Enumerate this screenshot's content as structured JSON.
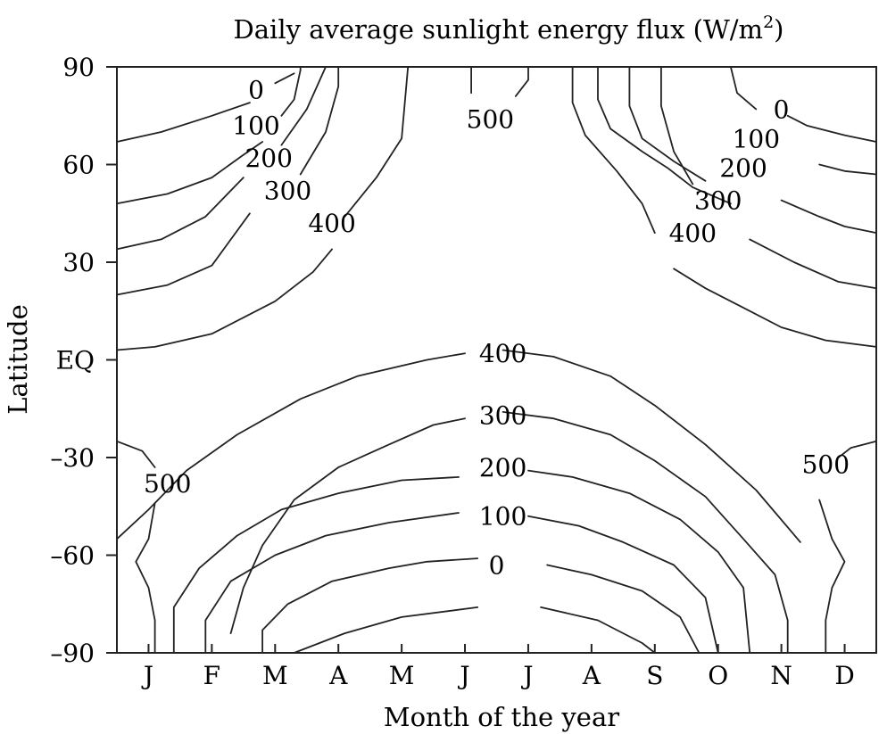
{
  "chart_data": {
    "type": "contour",
    "title": "Daily average sunlight energy flux (W/m",
    "title_superscript": "2",
    "title_suffix": ")",
    "xlabel": "Month of the year",
    "ylabel": "Latitude",
    "x_ticks": [
      "J",
      "F",
      "M",
      "A",
      "M",
      "J",
      "J",
      "A",
      "S",
      "O",
      "N",
      "D"
    ],
    "xlim": [
      0.5,
      12.5
    ],
    "y_ticks": [
      {
        "value": 90,
        "label": "90"
      },
      {
        "value": 60,
        "label": "60"
      },
      {
        "value": 30,
        "label": "30"
      },
      {
        "value": 0,
        "label": "EQ"
      },
      {
        "value": -30,
        "label": "–30"
      },
      {
        "value": -60,
        "label": "–60"
      },
      {
        "value": -90,
        "label": "–90"
      }
    ],
    "ylim": [
      -90,
      90
    ],
    "contours": [
      {
        "level": 0,
        "label": "0",
        "label_pos": [
          2.6,
          83
        ],
        "points": [
          [
            0.5,
            67
          ],
          [
            1.2,
            70
          ],
          [
            2.0,
            75
          ],
          [
            2.6,
            79
          ]
        ]
      },
      {
        "level": 0,
        "label": "0",
        "label_pos": [
          2.6,
          83
        ],
        "points": [
          [
            3.0,
            85
          ],
          [
            3.3,
            88
          ]
        ]
      },
      {
        "level": 100,
        "label": "100",
        "label_pos": [
          2.7,
          72
        ],
        "points": [
          [
            0.5,
            48
          ],
          [
            1.3,
            51
          ],
          [
            2.0,
            56
          ],
          [
            2.5,
            63
          ],
          [
            2.8,
            67
          ]
        ]
      },
      {
        "level": 100,
        "label": "100",
        "label_pos": [
          2.7,
          72
        ],
        "points": [
          [
            3.1,
            75
          ],
          [
            3.3,
            80
          ],
          [
            3.4,
            89
          ],
          [
            3.4,
            90
          ]
        ]
      },
      {
        "level": 200,
        "label": "200",
        "label_pos": [
          2.8,
          62
        ],
        "points": [
          [
            0.5,
            34
          ],
          [
            1.2,
            37
          ],
          [
            1.9,
            44
          ],
          [
            2.5,
            56
          ]
        ]
      },
      {
        "level": 200,
        "label": "200",
        "label_pos": [
          2.8,
          62
        ],
        "points": [
          [
            3.1,
            66
          ],
          [
            3.5,
            77
          ],
          [
            3.8,
            90
          ]
        ]
      },
      {
        "level": 300,
        "label": "300",
        "label_pos": [
          3.0,
          52
        ],
        "points": [
          [
            0.5,
            20
          ],
          [
            1.3,
            23
          ],
          [
            2.0,
            29
          ],
          [
            2.6,
            45
          ]
        ]
      },
      {
        "level": 300,
        "label": "300",
        "label_pos": [
          3.0,
          52
        ],
        "points": [
          [
            3.4,
            57
          ],
          [
            3.8,
            70
          ],
          [
            4.0,
            84
          ],
          [
            4.0,
            90
          ]
        ]
      },
      {
        "level": 400,
        "label": "400",
        "label_pos": [
          3.3,
          42
        ],
        "points": [
          [
            0.5,
            3
          ],
          [
            1.1,
            4
          ],
          [
            2.0,
            8
          ],
          [
            3.0,
            18
          ],
          [
            3.6,
            27
          ],
          [
            3.9,
            34
          ]
        ]
      },
      {
        "level": 400,
        "label": "400",
        "label_pos": [
          3.3,
          42
        ],
        "points": [
          [
            4.1,
            44
          ],
          [
            4.6,
            56
          ],
          [
            5.0,
            68
          ],
          [
            5.1,
            90
          ]
        ]
      },
      {
        "level": 500,
        "label": "500",
        "label_pos": [
          6.3,
          74
        ],
        "points": [
          [
            6.1,
            82
          ],
          [
            6.1,
            90
          ]
        ]
      },
      {
        "level": 500,
        "label": "500",
        "label_pos": [
          6.3,
          74
        ],
        "points": [
          [
            6.8,
            81
          ],
          [
            7.0,
            86
          ],
          [
            7.0,
            90
          ]
        ]
      },
      {
        "level": 500,
        "label": "500",
        "label_pos": [
          10.8,
          73
        ],
        "points": [
          [
            10.6,
            77
          ],
          [
            10.3,
            82
          ],
          [
            10.2,
            90
          ]
        ]
      },
      {
        "level": 500,
        "label": "500",
        "label_pos": [
          10.8,
          73
        ],
        "points": [
          [
            11.1,
            75
          ],
          [
            11.4,
            72
          ],
          [
            12.0,
            69
          ],
          [
            12.5,
            67
          ]
        ]
      },
      {
        "level": 100,
        "label": "100",
        "label_pos": [
          11.0,
          63
        ],
        "points": [
          [
            8.1,
            90
          ],
          [
            8.1,
            80
          ],
          [
            8.3,
            71
          ],
          [
            8.8,
            64
          ],
          [
            9.2,
            59
          ],
          [
            9.6,
            53
          ],
          [
            10.2,
            48
          ]
        ]
      },
      {
        "level": 100,
        "label": "100",
        "label_pos": [
          11.0,
          63
        ],
        "points": [
          [
            11.6,
            60
          ],
          [
            12.0,
            58
          ],
          [
            12.5,
            57
          ]
        ]
      },
      {
        "level": 200,
        "label": "200",
        "label_pos": [
          10.4,
          52
        ],
        "points": [
          [
            8.6,
            90
          ],
          [
            8.6,
            78
          ],
          [
            8.8,
            68
          ],
          [
            9.3,
            61
          ],
          [
            9.8,
            55
          ]
        ]
      },
      {
        "level": 200,
        "label": "200",
        "label_pos": [
          10.4,
          52
        ],
        "points": [
          [
            11.0,
            49
          ],
          [
            11.6,
            44
          ],
          [
            12.0,
            41
          ],
          [
            12.5,
            39
          ]
        ]
      },
      {
        "level": 300,
        "label": "300",
        "label_pos": [
          10.0,
          42
        ],
        "points": [
          [
            9.1,
            90
          ],
          [
            9.1,
            78
          ],
          [
            9.3,
            64
          ],
          [
            9.6,
            54
          ]
        ]
      },
      {
        "level": 300,
        "label": "300",
        "label_pos": [
          10.0,
          42
        ],
        "points": [
          [
            10.5,
            37
          ],
          [
            11.2,
            30
          ],
          [
            11.9,
            24
          ],
          [
            12.5,
            22
          ]
        ]
      },
      {
        "level": 400,
        "label": "400",
        "label_pos": [
          9.0,
          32
        ],
        "points": [
          [
            7.7,
            90
          ],
          [
            7.7,
            79
          ],
          [
            7.9,
            69
          ],
          [
            8.4,
            58
          ],
          [
            8.8,
            48
          ],
          [
            9.0,
            39
          ]
        ]
      },
      {
        "level": 400,
        "label": "400",
        "label_pos": [
          9.0,
          32
        ],
        "points": [
          [
            9.3,
            28
          ],
          [
            9.8,
            22
          ],
          [
            10.4,
            16
          ],
          [
            11.0,
            10
          ],
          [
            11.7,
            6
          ],
          [
            12.5,
            4
          ]
        ]
      },
      {
        "level": 400,
        "label": "400",
        "label_pos": [
          6.4,
          4
        ],
        "points": [
          [
            0.5,
            -55
          ],
          [
            1.0,
            -46
          ],
          [
            1.6,
            -34
          ],
          [
            2.4,
            -23
          ],
          [
            3.4,
            -12
          ],
          [
            4.3,
            -5
          ],
          [
            5.4,
            0
          ],
          [
            6.0,
            2
          ]
        ]
      },
      {
        "level": 400,
        "label": "400",
        "label_pos": [
          6.4,
          4
        ],
        "points": [
          [
            6.6,
            3
          ],
          [
            7.4,
            1
          ],
          [
            8.3,
            -5
          ],
          [
            9.0,
            -14
          ],
          [
            9.8,
            -26
          ],
          [
            10.6,
            -40
          ],
          [
            11.3,
            -56
          ]
        ]
      },
      {
        "level": 300,
        "label": "300",
        "label_pos": [
          6.4,
          -17
        ],
        "points": [
          [
            2.3,
            -84
          ],
          [
            2.5,
            -70
          ],
          [
            2.8,
            -57
          ],
          [
            3.3,
            -43
          ],
          [
            4.0,
            -33
          ],
          [
            4.8,
            -26
          ],
          [
            5.5,
            -20
          ],
          [
            6.0,
            -18
          ]
        ]
      },
      {
        "level": 300,
        "label": "300",
        "label_pos": [
          6.4,
          -17
        ],
        "points": [
          [
            6.6,
            -16
          ],
          [
            7.4,
            -18
          ],
          [
            8.3,
            -23
          ],
          [
            9.0,
            -31
          ],
          [
            9.8,
            -42
          ],
          [
            10.4,
            -55
          ],
          [
            10.9,
            -66
          ],
          [
            11.1,
            -80
          ],
          [
            11.1,
            -90
          ]
        ]
      },
      {
        "level": 200,
        "label": "200",
        "label_pos": [
          6.5,
          -38
        ],
        "points": [
          [
            1.4,
            -90
          ],
          [
            1.4,
            -76
          ],
          [
            1.8,
            -64
          ],
          [
            2.4,
            -54
          ],
          [
            3.1,
            -46
          ],
          [
            4.0,
            -41
          ],
          [
            5.0,
            -37
          ],
          [
            5.9,
            -36
          ]
        ]
      },
      {
        "level": 200,
        "label": "200",
        "label_pos": [
          6.5,
          -38
        ],
        "points": [
          [
            7.0,
            -34
          ],
          [
            7.7,
            -36
          ],
          [
            8.6,
            -41
          ],
          [
            9.4,
            -49
          ],
          [
            10.0,
            -59
          ],
          [
            10.4,
            -70
          ],
          [
            10.5,
            -90
          ]
        ]
      },
      {
        "level": 100,
        "label": "100",
        "label_pos": [
          6.5,
          -53
        ],
        "points": [
          [
            1.9,
            -90
          ],
          [
            1.9,
            -80
          ],
          [
            2.3,
            -68
          ],
          [
            3.0,
            -60
          ],
          [
            3.8,
            -54
          ],
          [
            4.8,
            -50
          ],
          [
            5.9,
            -47
          ]
        ]
      },
      {
        "level": 100,
        "label": "100",
        "label_pos": [
          6.5,
          -53
        ],
        "points": [
          [
            7.0,
            -48
          ],
          [
            7.8,
            -51
          ],
          [
            8.5,
            -56
          ],
          [
            9.3,
            -63
          ],
          [
            9.8,
            -73
          ],
          [
            10.0,
            -90
          ]
        ]
      },
      {
        "level": 0,
        "label": "0",
        "label_pos": [
          6.7,
          -64
        ],
        "points": [
          [
            2.8,
            -90
          ],
          [
            2.8,
            -83
          ],
          [
            3.2,
            -75
          ],
          [
            3.9,
            -68
          ],
          [
            4.8,
            -64
          ],
          [
            5.4,
            -62
          ],
          [
            6.2,
            -61
          ]
        ]
      },
      {
        "level": 0,
        "label": "0",
        "label_pos": [
          6.7,
          -64
        ],
        "points": [
          [
            7.3,
            -63
          ],
          [
            8.0,
            -66
          ],
          [
            8.8,
            -71
          ],
          [
            9.4,
            -79
          ],
          [
            9.7,
            -90
          ]
        ]
      },
      {
        "level": 0,
        "label": "0",
        "label_pos": [
          6.7,
          -64
        ],
        "points": [
          [
            3.3,
            -90
          ],
          [
            4.1,
            -84
          ],
          [
            5.0,
            -79
          ],
          [
            6.2,
            -76
          ]
        ]
      },
      {
        "level": 0,
        "label": "0",
        "label_pos": [
          6.7,
          -64
        ],
        "points": [
          [
            7.2,
            -76
          ],
          [
            8.1,
            -80
          ],
          [
            8.8,
            -87
          ],
          [
            9.0,
            -90
          ]
        ]
      },
      {
        "level": 500,
        "label": "500",
        "label_pos": [
          1.2,
          -38
        ],
        "points": [
          [
            0.5,
            -25
          ],
          [
            0.9,
            -28
          ],
          [
            1.1,
            -33
          ]
        ]
      },
      {
        "level": 500,
        "label": "500",
        "label_pos": [
          1.2,
          -38
        ],
        "points": [
          [
            1.1,
            -44
          ],
          [
            1.0,
            -55
          ],
          [
            0.8,
            -62
          ],
          [
            1.0,
            -70
          ],
          [
            1.1,
            -80
          ],
          [
            1.1,
            -90
          ]
        ]
      },
      {
        "level": 500,
        "label": "500",
        "label_pos": [
          11.8,
          -33
        ],
        "points": [
          [
            12.5,
            -25
          ],
          [
            12.1,
            -27
          ],
          [
            11.9,
            -30
          ]
        ]
      },
      {
        "level": 500,
        "label": "500",
        "label_pos": [
          11.8,
          -33
        ],
        "points": [
          [
            11.6,
            -43
          ],
          [
            11.8,
            -55
          ],
          [
            12.0,
            -62
          ],
          [
            11.8,
            -70
          ],
          [
            11.7,
            -80
          ],
          [
            11.7,
            -90
          ]
        ]
      }
    ],
    "labels": [
      {
        "text": "0",
        "x": 2.7,
        "y": 83
      },
      {
        "text": "100",
        "x": 2.7,
        "y": 72
      },
      {
        "text": "200",
        "x": 2.9,
        "y": 62
      },
      {
        "text": "300",
        "x": 3.2,
        "y": 52
      },
      {
        "text": "400",
        "x": 3.9,
        "y": 42
      },
      {
        "text": "500",
        "x": 6.4,
        "y": 74
      },
      {
        "text": "0",
        "x": 11.0,
        "y": 77
      },
      {
        "text": "100",
        "x": 10.6,
        "y": 68
      },
      {
        "text": "200",
        "x": 10.4,
        "y": 59
      },
      {
        "text": "300",
        "x": 10.0,
        "y": 49
      },
      {
        "text": "400",
        "x": 9.6,
        "y": 39
      },
      {
        "text": "400",
        "x": 6.6,
        "y": 2
      },
      {
        "text": "300",
        "x": 6.6,
        "y": -17
      },
      {
        "text": "200",
        "x": 6.6,
        "y": -33
      },
      {
        "text": "100",
        "x": 6.6,
        "y": -48
      },
      {
        "text": "0",
        "x": 6.5,
        "y": -63
      },
      {
        "text": "500",
        "x": 1.3,
        "y": -38
      },
      {
        "text": "500",
        "x": 11.7,
        "y": -32
      }
    ]
  }
}
